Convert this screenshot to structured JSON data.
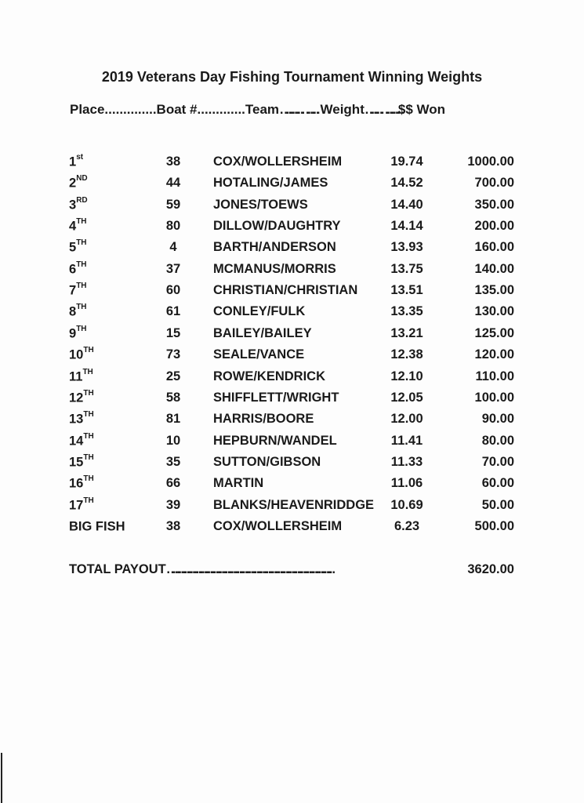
{
  "title": "2019 Veterans Day Fishing Tournament Winning Weights",
  "header": "Place..............Boat #.............Team……….……..Weight…….………$$ Won",
  "rows": [
    {
      "place": "1",
      "suffix": "st",
      "boat": "38",
      "team": "COX/WOLLERSHEIM",
      "weight": "19.74",
      "won": "1000.00"
    },
    {
      "place": "2",
      "suffix": "ND",
      "boat": "44",
      "team": "HOTALING/JAMES",
      "weight": "14.52",
      "won": "700.00"
    },
    {
      "place": "3",
      "suffix": "RD",
      "boat": "59",
      "team": "JONES/TOEWS",
      "weight": "14.40",
      "won": "350.00"
    },
    {
      "place": "4",
      "suffix": "TH",
      "boat": "80",
      "team": "DILLOW/DAUGHTRY",
      "weight": "14.14",
      "won": "200.00"
    },
    {
      "place": "5",
      "suffix": "TH",
      "boat": "4",
      "team": "BARTH/ANDERSON",
      "weight": "13.93",
      "won": "160.00"
    },
    {
      "place": "6",
      "suffix": "TH",
      "boat": "37",
      "team": "MCMANUS/MORRIS",
      "weight": "13.75",
      "won": "140.00"
    },
    {
      "place": "7",
      "suffix": "TH",
      "boat": "60",
      "team": "CHRISTIAN/CHRISTIAN",
      "weight": "13.51",
      "won": "135.00"
    },
    {
      "place": "8",
      "suffix": "TH",
      "boat": "61",
      "team": "CONLEY/FULK",
      "weight": "13.35",
      "won": "130.00"
    },
    {
      "place": "9",
      "suffix": "TH",
      "boat": "15",
      "team": "BAILEY/BAILEY",
      "weight": "13.21",
      "won": "125.00"
    },
    {
      "place": "10",
      "suffix": "TH",
      "boat": "73",
      "team": "SEALE/VANCE",
      "weight": "12.38",
      "won": "120.00"
    },
    {
      "place": "11",
      "suffix": "TH",
      "boat": "25",
      "team": "ROWE/KENDRICK",
      "weight": "12.10",
      "won": "110.00"
    },
    {
      "place": "12",
      "suffix": "TH",
      "boat": "58",
      "team": "SHIFFLETT/WRIGHT",
      "weight": "12.05",
      "won": "100.00"
    },
    {
      "place": "13",
      "suffix": "TH",
      "boat": "81",
      "team": "HARRIS/BOORE",
      "weight": "12.00",
      "won": "90.00"
    },
    {
      "place": "14",
      "suffix": "TH",
      "boat": "10",
      "team": "HEPBURN/WANDEL",
      "weight": "11.41",
      "won": "80.00"
    },
    {
      "place": "15",
      "suffix": "TH",
      "boat": "35",
      "team": "SUTTON/GIBSON",
      "weight": "11.33",
      "won": "70.00"
    },
    {
      "place": "16",
      "suffix": "TH",
      "boat": "66",
      "team": "MARTIN",
      "weight": "11.06",
      "won": "60.00"
    },
    {
      "place": "17",
      "suffix": "TH",
      "boat": "39",
      "team": "BLANKS/HEAVENRIDDGE",
      "weight": "10.69",
      "won": "50.00"
    },
    {
      "place": "BIG FISH",
      "suffix": "",
      "boat": "38",
      "team": "COX/WOLLERSHEIM",
      "weight": "6.23",
      "won": "500.00"
    }
  ],
  "total": {
    "label": "TOTAL PAYOUT………………………………………………………………………….",
    "value": "3620.00"
  }
}
